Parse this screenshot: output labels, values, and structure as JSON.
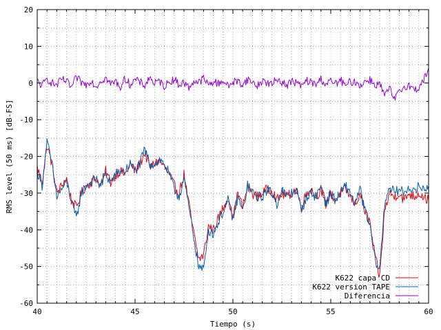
{
  "chart_data": {
    "type": "line",
    "xlabel": "Tiempo (s)",
    "ylabel": "RMS level (50 ms) [dB-FS]",
    "xlim": [
      40,
      60
    ],
    "ylim": [
      -60,
      20
    ],
    "x_ticks": [
      40,
      45,
      50,
      55,
      60
    ],
    "x_tick_labels": [
      "40",
      "45",
      "50",
      "55",
      "60"
    ],
    "y_ticks": [
      -60,
      -50,
      -40,
      -30,
      -20,
      -10,
      0,
      10,
      20
    ],
    "y_tick_labels": [
      "-60",
      "-50",
      "-40",
      "-30",
      "-20",
      "-10",
      "0",
      "10",
      "20"
    ],
    "x_minor_step": 0.5,
    "y_minor_step": 5,
    "grid": true,
    "legend_position": "bottom-right",
    "series": [
      {
        "name": "K622 capa CD",
        "color": "#e8000b",
        "x": [
          40,
          40.25,
          40.5,
          40.75,
          41,
          41.25,
          41.5,
          41.75,
          42,
          42.25,
          42.5,
          42.75,
          43,
          43.25,
          43.5,
          43.75,
          44,
          44.25,
          44.5,
          44.75,
          45,
          45.25,
          45.5,
          45.75,
          46,
          46.25,
          46.5,
          46.75,
          47,
          47.25,
          47.5,
          47.75,
          48,
          48.25,
          48.5,
          48.75,
          49,
          49.25,
          49.5,
          49.75,
          50,
          50.25,
          50.5,
          50.75,
          51,
          51.25,
          51.5,
          51.75,
          52,
          52.25,
          52.5,
          52.75,
          53,
          53.25,
          53.5,
          53.75,
          54,
          54.25,
          54.5,
          54.75,
          55,
          55.25,
          55.5,
          55.75,
          56,
          56.25,
          56.5,
          56.75,
          57,
          57.25,
          57.5,
          57.75,
          58,
          58.25,
          58.5,
          58.75,
          59,
          59.25,
          59.5,
          59.75,
          60
        ],
        "values": [
          -23,
          -27,
          -17,
          -22,
          -30,
          -28,
          -26,
          -32,
          -34,
          -30,
          -28,
          -27,
          -26,
          -28,
          -24,
          -27,
          -25,
          -24,
          -25,
          -22,
          -24,
          -22,
          -19,
          -23,
          -22,
          -21,
          -23,
          -25,
          -28,
          -30,
          -25,
          -33,
          -41,
          -48,
          -47,
          -39,
          -40,
          -37,
          -34,
          -31,
          -37,
          -30,
          -34,
          -28,
          -30,
          -31,
          -30,
          -29,
          -29,
          -32,
          -30,
          -31,
          -30,
          -29,
          -34,
          -30,
          -29,
          -31,
          -29,
          -33,
          -30,
          -32,
          -30,
          -29,
          -31,
          -33,
          -30,
          -35,
          -38,
          -47,
          -53,
          -35,
          -30,
          -31,
          -30,
          -32,
          -30,
          -31,
          -30,
          -31,
          -32
        ]
      },
      {
        "name": "K622 version TAPE",
        "color": "#0060ad",
        "x": [
          40,
          40.25,
          40.5,
          40.75,
          41,
          41.25,
          41.5,
          41.75,
          42,
          42.25,
          42.5,
          42.75,
          43,
          43.25,
          43.5,
          43.75,
          44,
          44.25,
          44.5,
          44.75,
          45,
          45.25,
          45.5,
          45.75,
          46,
          46.25,
          46.5,
          46.75,
          47,
          47.25,
          47.5,
          47.75,
          48,
          48.25,
          48.5,
          48.75,
          49,
          49.25,
          49.5,
          49.75,
          50,
          50.25,
          50.5,
          50.75,
          51,
          51.25,
          51.5,
          51.75,
          52,
          52.25,
          52.5,
          52.75,
          53,
          53.25,
          53.5,
          53.75,
          54,
          54.25,
          54.5,
          54.75,
          55,
          55.25,
          55.5,
          55.75,
          56,
          56.25,
          56.5,
          56.75,
          57,
          57.25,
          57.5,
          57.75,
          58,
          58.25,
          58.5,
          58.75,
          59,
          59.25,
          59.5,
          59.75,
          60
        ],
        "values": [
          -24,
          -28,
          -16,
          -22,
          -31,
          -29,
          -27,
          -32,
          -37,
          -30,
          -28,
          -27,
          -26,
          -28,
          -25,
          -27,
          -25,
          -24,
          -24,
          -22,
          -24,
          -22,
          -18,
          -22,
          -22,
          -21,
          -22,
          -25,
          -29,
          -31,
          -26,
          -34,
          -42,
          -50,
          -51,
          -40,
          -41,
          -38,
          -35,
          -32,
          -37,
          -31,
          -35,
          -28,
          -30,
          -31,
          -31,
          -29,
          -30,
          -33,
          -29,
          -31,
          -30,
          -29,
          -35,
          -31,
          -30,
          -31,
          -28,
          -33,
          -30,
          -32,
          -30,
          -28,
          -30,
          -33,
          -29,
          -35,
          -39,
          -48,
          -51,
          -33,
          -28,
          -30,
          -29,
          -30,
          -28,
          -30,
          -28,
          -29,
          -28
        ]
      },
      {
        "name": "Diferencia",
        "color": "#9400d3",
        "x": [
          40,
          40.25,
          40.5,
          40.75,
          41,
          41.25,
          41.5,
          41.75,
          42,
          42.25,
          42.5,
          42.75,
          43,
          43.25,
          43.5,
          43.75,
          44,
          44.25,
          44.5,
          44.75,
          45,
          45.25,
          45.5,
          45.75,
          46,
          46.25,
          46.5,
          46.75,
          47,
          47.25,
          47.5,
          47.75,
          48,
          48.25,
          48.5,
          48.75,
          49,
          49.25,
          49.5,
          49.75,
          50,
          50.25,
          50.5,
          50.75,
          51,
          51.25,
          51.5,
          51.75,
          52,
          52.25,
          52.5,
          52.75,
          53,
          53.25,
          53.5,
          53.75,
          54,
          54.25,
          54.5,
          54.75,
          55,
          55.25,
          55.5,
          55.75,
          56,
          56.25,
          56.5,
          56.75,
          57,
          57.25,
          57.5,
          57.75,
          58,
          58.25,
          58.5,
          58.75,
          59,
          59.25,
          59.5,
          59.75,
          60
        ],
        "values": [
          0.5,
          -0.8,
          1.2,
          0,
          -0.6,
          1,
          0.4,
          -1.2,
          1.5,
          0.2,
          -0.5,
          0.8,
          -1,
          0.6,
          1.4,
          -0.3,
          0.5,
          -1.1,
          1.2,
          -0.4,
          0.9,
          0.2,
          -0.7,
          1.6,
          -0.2,
          0.5,
          -0.9,
          0.3,
          1.1,
          -0.5,
          0.2,
          -1.3,
          0.6,
          0.1,
          1.3,
          -0.6,
          0.4,
          -0.2,
          0.8,
          -1,
          0.3,
          0.5,
          -0.4,
          1,
          0.2,
          -0.8,
          0.6,
          0.1,
          -0.5,
          1.2,
          0.3,
          -0.6,
          0.4,
          0.2,
          -1,
          0.7,
          0.1,
          -0.4,
          1.1,
          -0.3,
          0.5,
          -0.2,
          0.8,
          -0.9,
          0.4,
          0.2,
          -0.6,
          0.3,
          1,
          -0.5,
          -0.2,
          -3.5,
          -1.5,
          -4.5,
          -2.5,
          -1,
          -0.5,
          -2,
          -1.2,
          0.8,
          4
        ]
      }
    ]
  }
}
